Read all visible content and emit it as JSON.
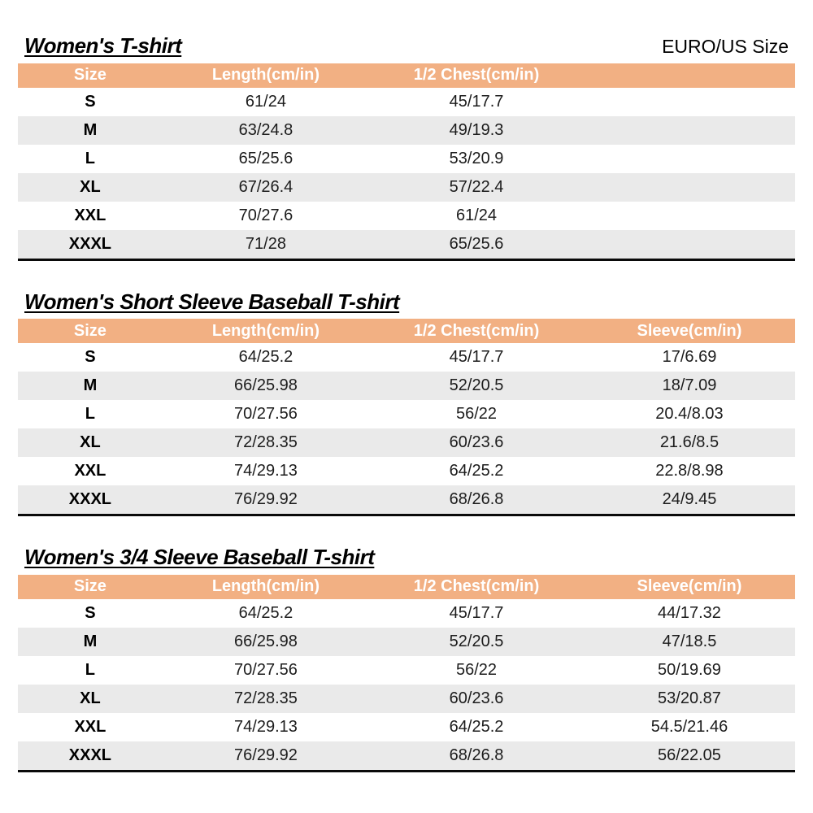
{
  "colors": {
    "header_bg": "#F2B083",
    "header_text": "#FFFFFF",
    "row_alt_bg": "#EAEAEA",
    "table_bottom_border": "#0A0A0A"
  },
  "tables": [
    {
      "title": "Women's T-shirt",
      "corner_label": "EURO/US Size",
      "columns": [
        "Size",
        "Length(cm/in)",
        "1/2 Chest(cm/in)"
      ],
      "rows": [
        [
          "S",
          "61/24",
          "45/17.7"
        ],
        [
          "M",
          "63/24.8",
          "49/19.3"
        ],
        [
          "L",
          "65/25.6",
          "53/20.9"
        ],
        [
          "XL",
          "67/26.4",
          "57/22.4"
        ],
        [
          "XXL",
          "70/27.6",
          "61/24"
        ],
        [
          "XXXL",
          "71/28",
          "65/25.6"
        ]
      ]
    },
    {
      "title": "Women's Short Sleeve Baseball T-shirt",
      "corner_label": "",
      "columns": [
        "Size",
        "Length(cm/in)",
        "1/2 Chest(cm/in)",
        "Sleeve(cm/in)"
      ],
      "rows": [
        [
          "S",
          "64/25.2",
          "45/17.7",
          "17/6.69"
        ],
        [
          "M",
          "66/25.98",
          "52/20.5",
          "18/7.09"
        ],
        [
          "L",
          "70/27.56",
          "56/22",
          "20.4/8.03"
        ],
        [
          "XL",
          "72/28.35",
          "60/23.6",
          "21.6/8.5"
        ],
        [
          "XXL",
          "74/29.13",
          "64/25.2",
          "22.8/8.98"
        ],
        [
          "XXXL",
          "76/29.92",
          "68/26.8",
          "24/9.45"
        ]
      ]
    },
    {
      "title": "Women's 3/4 Sleeve Baseball T-shirt",
      "corner_label": "",
      "columns": [
        "Size",
        "Length(cm/in)",
        "1/2 Chest(cm/in)",
        "Sleeve(cm/in)"
      ],
      "rows": [
        [
          "S",
          "64/25.2",
          "45/17.7",
          "44/17.32"
        ],
        [
          "M",
          "66/25.98",
          "52/20.5",
          "47/18.5"
        ],
        [
          "L",
          "70/27.56",
          "56/22",
          "50/19.69"
        ],
        [
          "XL",
          "72/28.35",
          "60/23.6",
          "53/20.87"
        ],
        [
          "XXL",
          "74/29.13",
          "64/25.2",
          "54.5/21.46"
        ],
        [
          "XXXL",
          "76/29.92",
          "68/26.8",
          "56/22.05"
        ]
      ]
    }
  ]
}
